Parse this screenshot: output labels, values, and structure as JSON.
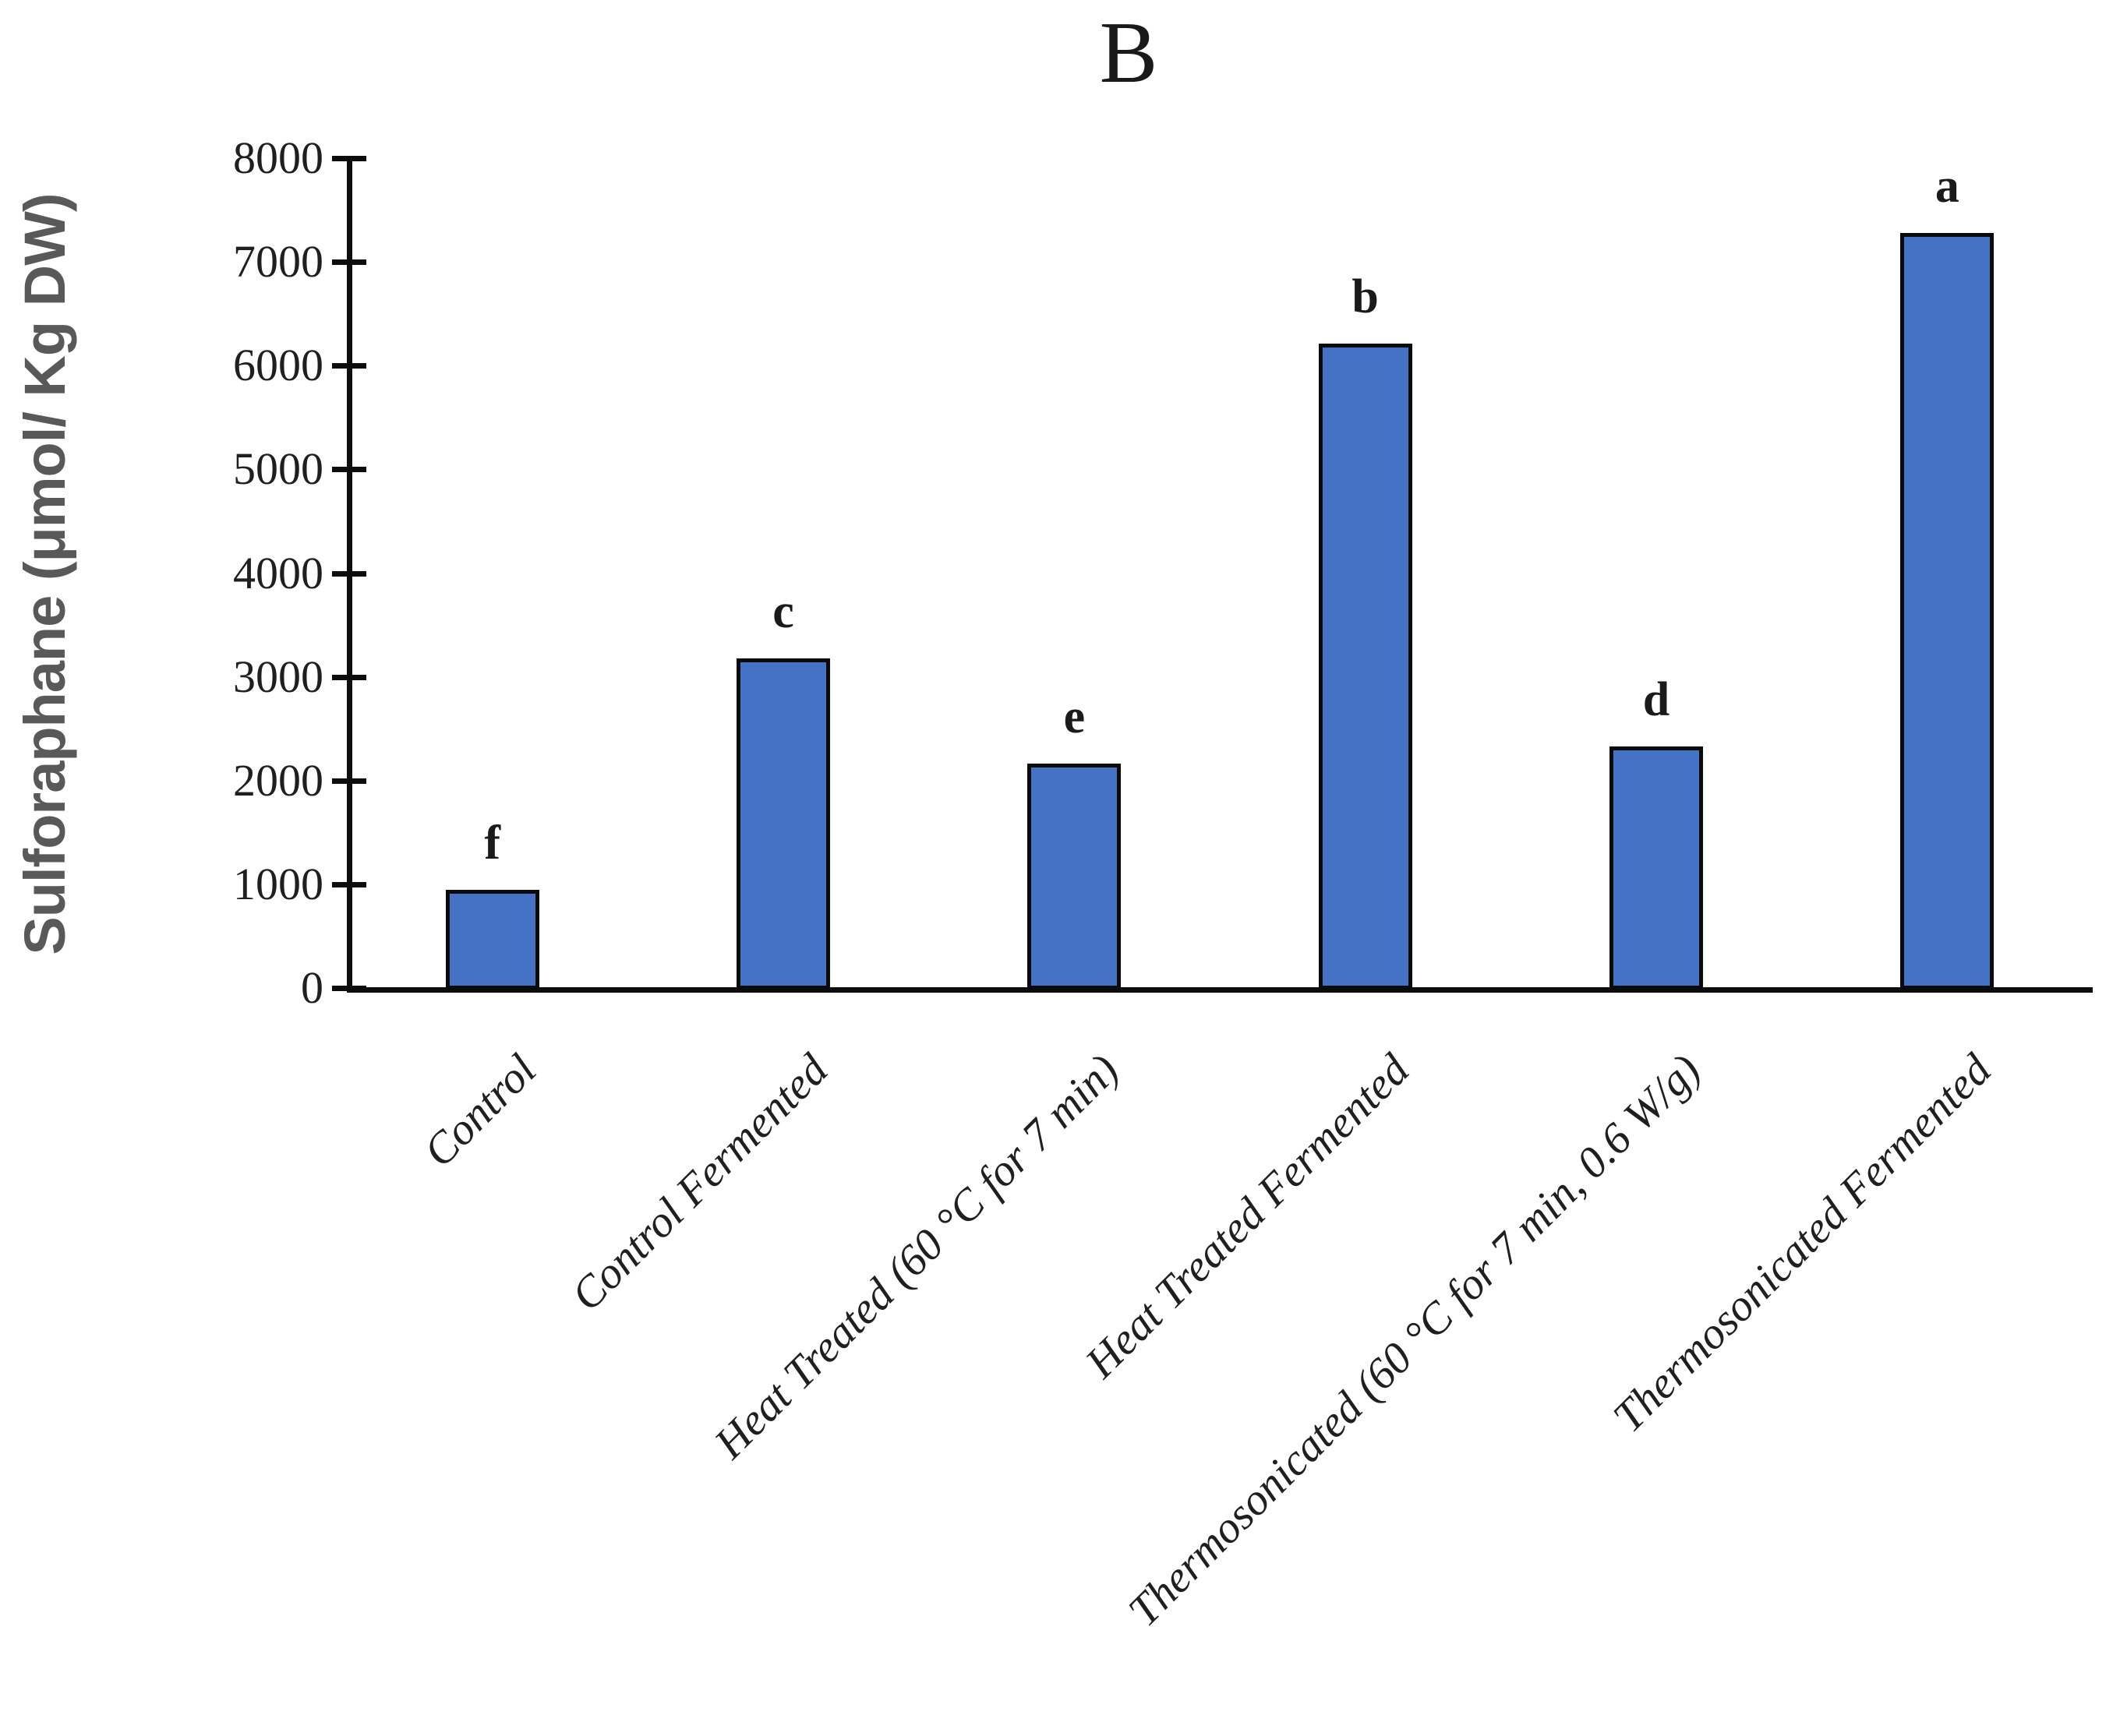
{
  "figure_label": "B",
  "y_axis_title": "Sulforaphane (μmol/ Kg DW)",
  "colors": {
    "bar_fill": "#4472C4",
    "bar_border": "#0a0a0a",
    "axis": "#0d0d0d",
    "y_axis_title_color": "#595959",
    "text": "#1f1f1f"
  },
  "chart_data": {
    "type": "bar",
    "title": "B",
    "xlabel": "",
    "ylabel": "Sulforaphane (μmol/ Kg DW)",
    "ylim": [
      0,
      8000
    ],
    "ytick_interval": 1000,
    "yticks": [
      0,
      1000,
      2000,
      3000,
      4000,
      5000,
      6000,
      7000,
      8000
    ],
    "grid": false,
    "legend": null,
    "categories": [
      "Control",
      "Control Fermented",
      "Heat Treated (60 °C for 7 min)",
      "Heat Treated Fermented",
      "Thermosonicated (60 °C for 7 min, 0.6 W/g)",
      "Thermosonicated Fermented"
    ],
    "values": [
      950,
      3180,
      2160,
      6210,
      2330,
      7280
    ],
    "significance_letters": [
      "f",
      "c",
      "e",
      "b",
      "d",
      "a"
    ]
  }
}
